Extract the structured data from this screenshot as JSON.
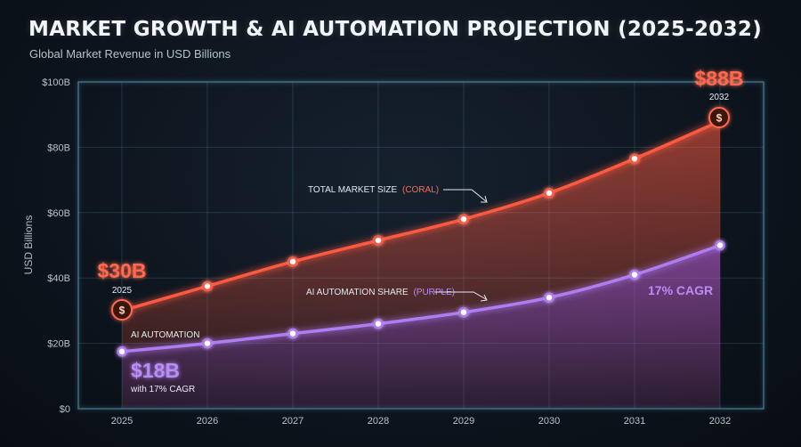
{
  "chart_data": {
    "type": "line",
    "title": "MARKET GROWTH & AI AUTOMATION PROJECTION (2025-2032)",
    "subtitle": "Global Market Revenue in USD Billions",
    "ylabel": "USD Billions",
    "xlabel": "",
    "x": [
      "2025",
      "2026",
      "2027",
      "2028",
      "2029",
      "2030",
      "2031",
      "2032"
    ],
    "yticks": [
      "$0",
      "$20B",
      "$40B",
      "$60B",
      "$80B",
      "$100B"
    ],
    "ylim": [
      0,
      100
    ],
    "grid": true,
    "series": [
      {
        "name": "TOTAL MARKET SIZE",
        "color": "#ff5a40",
        "values": [
          30,
          37.5,
          45,
          51.5,
          58,
          66,
          76.5,
          88
        ]
      },
      {
        "name": "AI AUTOMATION SHARE",
        "color": "#b07cf2",
        "values": [
          17.5,
          20,
          23,
          26,
          29.5,
          34,
          41,
          50
        ]
      }
    ],
    "annotations": {
      "total_label": "TOTAL MARKET SIZE",
      "total_tag": "(CORAL)",
      "ai_label": "AI AUTOMATION SHARE",
      "ai_tag": "(PURPLE)",
      "start_value": "$30B",
      "start_year": "2025",
      "end_value": "$88B",
      "end_year": "2032",
      "ai_start_caption": "AI AUTOMATION",
      "ai_start_value": "$18B",
      "ai_start_sub": "with 17% CAGR",
      "cagr": "17% CAGR",
      "coin_symbol": "$"
    }
  }
}
